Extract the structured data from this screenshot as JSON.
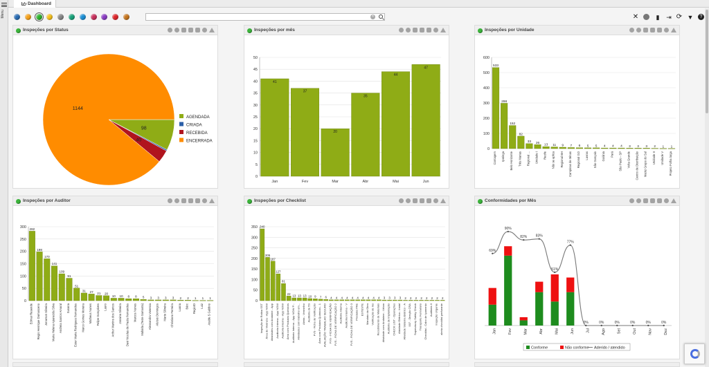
{
  "app": {
    "tab_title": "Dashboard",
    "menu_label": "Menu"
  },
  "colors": {
    "olive": "#8fac16",
    "orange": "#ff8c00",
    "navy": "#2c5fa8",
    "crimson": "#b0141e",
    "green": "#1e8c1e",
    "red": "#e11",
    "line": "#777"
  },
  "toolbar": {
    "filter_dots": [
      "#2a6db5",
      "#f7a21b",
      "#2db52d",
      "#f7c21b",
      "#888888",
      "#19a37a",
      "#1b8fd6",
      "#c9305c",
      "#8b3cc4",
      "#e0262a",
      "#c8771f"
    ],
    "selected_dot": 2,
    "search": {
      "value": "",
      "placeholder": ""
    },
    "icons": [
      "close-icon",
      "globe-icon",
      "chart-icon",
      "export-icon",
      "refresh-icon",
      "filter-icon",
      "help-icon"
    ]
  },
  "panel_icons": [
    "search-icon",
    "refresh-icon",
    "location-icon",
    "download-icon",
    "mail-icon",
    "settings-icon",
    "warning-icon"
  ],
  "panels": [
    {
      "title": "Inspeções por Status"
    },
    {
      "title": "Inspeções por mês"
    },
    {
      "title": "Inspeções por Unidade"
    },
    {
      "title": "Inspeções por Auditor"
    },
    {
      "title": "Inspeções por Checklist"
    },
    {
      "title": "Conformidades por Mês"
    }
  ],
  "chart_data": [
    {
      "type": "pie",
      "categories": [
        "AGENDADA",
        "CRIADA",
        "RECEBIDA",
        "ENCERRADA"
      ],
      "values": [
        98,
        4,
        40,
        1144
      ],
      "colors": [
        "#8fac16",
        "#2c5fa8",
        "#b0141e",
        "#ff8c00"
      ],
      "legend": "right"
    },
    {
      "type": "bar",
      "categories": [
        "Jan",
        "Fev",
        "Mar",
        "Abr",
        "Mai",
        "Jun"
      ],
      "values": [
        41,
        37,
        20,
        35,
        44,
        47
      ],
      "ylim": [
        0,
        50
      ],
      "yticks": [
        0,
        5,
        10,
        15,
        20,
        25,
        30,
        35,
        40,
        45,
        50
      ],
      "grid": true
    },
    {
      "type": "bar",
      "categories": [
        "Contagem",
        "Ipatinga",
        "Belo Horizonte",
        "Três Marias",
        "Regional ...",
        "Unidade I",
        "Recife",
        "Não se aplica",
        "Regional BH",
        "Campinas de Minas",
        "Regional GO",
        "Lavras",
        "São Gonçalo",
        "Goiânia",
        "Pará",
        "São Paulo - SP",
        "Volta Grande",
        "Centro de Distribuição",
        "Matriz Grupo do Sul",
        "Unidade II",
        "Unidade V",
        "Projeto Folha larga"
      ],
      "values": [
        533,
        298,
        152,
        82,
        33,
        26,
        13,
        11,
        9,
        7,
        6,
        5,
        5,
        4,
        4,
        4,
        3,
        3,
        3,
        2,
        1,
        1
      ],
      "ylim": [
        0,
        600
      ],
      "yticks": [
        0,
        100,
        200,
        300,
        400,
        500,
        600
      ],
      "grid": true
    },
    {
      "type": "bar",
      "categories": [
        "Edmar Resende",
        "Regis Henrique Damasceno",
        "Jonarson Silveira",
        "Maria Helena Aparecida Silva",
        "Andreia Santos Amaral",
        "Susana",
        "Ester Maria Rodrigues Fernandes",
        "Marco Gomes Moreira",
        "Matheus Nunes",
        "Felipe Gonçalves",
        "Lauro",
        "Arthur Martins dos Santos",
        "Janaina Silveira",
        "Davi Nicolas de Paula Fernandes",
        "Marcos Nunes",
        "Mafalda (Teste Samanta)",
        "Alessandra Vanessa",
        "Aluísio Domingos",
        "Marte Silveira",
        "Christiano Ferreira",
        "Luana",
        "Bárc",
        "RegioID",
        "Luiz",
        "Ataíde S Galdino"
      ],
      "values": [
        282,
        198,
        170,
        141,
        109,
        91,
        51,
        31,
        27,
        21,
        20,
        10,
        10,
        8,
        8,
        5,
        3,
        3,
        3,
        3,
        2,
        2,
        1,
        1,
        1
      ],
      "ylim": [
        0,
        300
      ],
      "yticks": [
        0,
        50,
        100,
        150,
        200,
        250,
        300
      ],
      "grid": true
    },
    {
      "type": "bar",
      "categories": [
        "Inspeção de Rotina SST",
        "Área de Vivência - App NOW",
        "Atividades com Andaime - App",
        "Auditoria Interna - App NOW",
        "Auditoria Interna - App NOW",
        "Área com Produtos Químicos",
        "Auditoria Interna - App NOW P...",
        "Atividades com trabalho em...",
        "Alerta - Vermelho",
        "Auditoria de 5S",
        "FVS - Ficha de Verificação",
        "Área com Produtos Químicos - 1",
        "AVALIAÇÃO TRABALHO SEGURO",
        "FVS - FICHA DE VERIFICAÇÃO",
        "FVS - FICHA DE VERIFICAÇÃO 2",
        "Auditoria Interna",
        "Auditoria Interna - V",
        "FVS - FICHA DE VERIFICAÇÃO 3",
        "Produtos PAE",
        "ESTESTE",
        "Mandato da Obra",
        "Verificação de Ins",
        "Recebimento de Materiais",
        "Atividade com Andaime - Urban",
        "Auditoria de Implantação",
        "CHECK LIST - Operações",
        "Atividade Elétrica - Instal",
        "Atividade Sistema Elétrico - A",
        "007 - Direção CRA",
        "Supervisory Safety Check",
        "Transporte Ferroviário",
        "Checklist - Cabo de Içamento",
        "Auditoria II",
        "Inspeção Urgente",
        "alerta checklist perfurante"
      ],
      "values": [
        340,
        205,
        187,
        127,
        81,
        22,
        13,
        13,
        13,
        10,
        9,
        7,
        6,
        4,
        4,
        4,
        4,
        4,
        4,
        4,
        4,
        4,
        4,
        3,
        3,
        3,
        3,
        2,
        2,
        2,
        2,
        2,
        2,
        2,
        2
      ],
      "ylim": [
        0,
        350
      ],
      "yticks": [
        0,
        50,
        100,
        150,
        200,
        250,
        300,
        350
      ],
      "grid": true
    },
    {
      "type": "bar",
      "categories": [
        "Jan",
        "Fev",
        "Mar",
        "Abr",
        "Mai",
        "Jun",
        "Jul",
        "Ago",
        "Set",
        "Out",
        "Nov",
        "Dez"
      ],
      "series": [
        {
          "name": "Conforme",
          "values": [
            20,
            67,
            5,
            32,
            23,
            32,
            0,
            0,
            0,
            0,
            0,
            0
          ]
        },
        {
          "name": "Não conforme",
          "values": [
            16,
            9,
            3,
            10,
            26,
            14,
            0,
            0,
            0,
            0,
            0,
            0
          ]
        },
        {
          "name": "Aderido / atendido",
          "values": [
            69,
            90,
            82,
            83,
            51,
            77,
            0,
            0,
            0,
            0,
            0,
            0
          ],
          "labels": [
            "69%",
            "90%",
            "82%",
            "83%",
            "51%",
            "77%",
            "0%",
            "0%",
            "0%",
            "0%",
            "0%",
            "0%"
          ]
        }
      ],
      "ylim": [
        0,
        100
      ],
      "legend": "bottom"
    }
  ]
}
